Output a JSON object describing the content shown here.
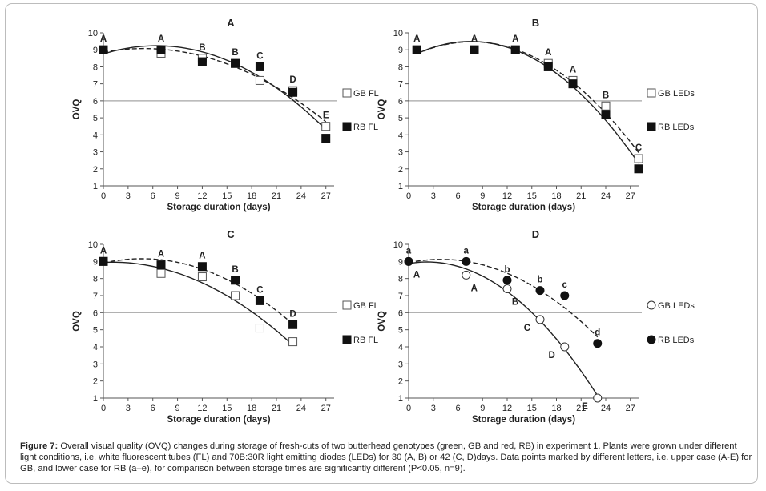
{
  "caption": {
    "label": "Figure 7:",
    "text": " Overall visual quality (OVQ) changes during storage of fresh-cuts of two butterhead genotypes (green, GB and red, RB) in experiment 1. Plants were grown under different light conditions, i.e. white fluorescent tubes (FL) and 70B:30R light emitting diodes (LEDs) for 30 (A, B) or 42 (C, D)days. Data points marked by different letters, i.e. upper case (A-E) for GB, and lower case for RB (a–e), for comparison between storage times are significantly different (P<0.05, n=9)."
  },
  "chart_data": [
    {
      "type": "scatter",
      "panel": "A",
      "title": "A",
      "xlabel": "Storage duration (days)",
      "ylabel": "OVQ",
      "xlim": [
        0,
        27
      ],
      "ylim": [
        1,
        10
      ],
      "xticks": [
        "0",
        "3",
        "6",
        "9",
        "12",
        "15",
        "18",
        "21",
        "24",
        "27"
      ],
      "yticks": [
        "1",
        "2",
        "3",
        "4",
        "5",
        "6",
        "7",
        "8",
        "9",
        "10"
      ],
      "reference_line_y": 6,
      "legend_placement": "right",
      "series": [
        {
          "name": "GB FL",
          "marker": "open-square",
          "trend": "dashed",
          "x": [
            0,
            7,
            12,
            16,
            19,
            23,
            27
          ],
          "y": [
            9.0,
            8.8,
            8.5,
            8.2,
            7.2,
            6.6,
            4.5
          ]
        },
        {
          "name": "RB FL",
          "marker": "filled-square",
          "trend": "solid",
          "x": [
            0,
            7,
            12,
            16,
            19,
            23,
            27
          ],
          "y": [
            9.0,
            9.0,
            8.3,
            8.2,
            8.0,
            6.5,
            3.8
          ]
        }
      ],
      "annotations": [
        {
          "text": "A",
          "x": 0,
          "y": 9.0,
          "pos": "above"
        },
        {
          "text": "A",
          "x": 7,
          "y": 9.0,
          "pos": "above"
        },
        {
          "text": "B",
          "x": 12,
          "y": 8.5,
          "pos": "above"
        },
        {
          "text": "B",
          "x": 16,
          "y": 8.2,
          "pos": "above"
        },
        {
          "text": "C",
          "x": 19,
          "y": 8.0,
          "pos": "above"
        },
        {
          "text": "D",
          "x": 23,
          "y": 6.6,
          "pos": "above"
        },
        {
          "text": "E",
          "x": 27,
          "y": 4.5,
          "pos": "above"
        }
      ]
    },
    {
      "type": "scatter",
      "panel": "B",
      "title": "B",
      "xlabel": "Storage duration (days)",
      "ylabel": "OVQ",
      "xlim": [
        0,
        27
      ],
      "ylim": [
        1,
        10
      ],
      "xticks": [
        "0",
        "3",
        "6",
        "9",
        "12",
        "15",
        "18",
        "21",
        "24",
        "27"
      ],
      "yticks": [
        "1",
        "2",
        "3",
        "4",
        "5",
        "6",
        "7",
        "8",
        "9",
        "10"
      ],
      "reference_line_y": 6,
      "legend_placement": "right",
      "series": [
        {
          "name": "GB LEDs",
          "marker": "open-square",
          "trend": "dashed",
          "x": [
            1,
            8,
            13,
            17,
            20,
            24,
            28
          ],
          "y": [
            9.0,
            9.0,
            9.0,
            8.2,
            7.2,
            5.7,
            2.6
          ]
        },
        {
          "name": "RB LEDs",
          "marker": "filled-square",
          "trend": "solid",
          "x": [
            1,
            8,
            13,
            17,
            20,
            24,
            28
          ],
          "y": [
            9.0,
            9.0,
            9.0,
            8.0,
            7.0,
            5.2,
            2.0
          ]
        }
      ],
      "annotations": [
        {
          "text": "A",
          "x": 1,
          "y": 9.0,
          "pos": "above"
        },
        {
          "text": "A",
          "x": 8,
          "y": 9.0,
          "pos": "above"
        },
        {
          "text": "A",
          "x": 13,
          "y": 9.0,
          "pos": "above"
        },
        {
          "text": "A",
          "x": 17,
          "y": 8.2,
          "pos": "above"
        },
        {
          "text": "A",
          "x": 20,
          "y": 7.2,
          "pos": "above"
        },
        {
          "text": "B",
          "x": 24,
          "y": 5.7,
          "pos": "above"
        },
        {
          "text": "C",
          "x": 28,
          "y": 2.6,
          "pos": "above"
        }
      ]
    },
    {
      "type": "scatter",
      "panel": "C",
      "title": "C",
      "xlabel": "Storage duration (days)",
      "ylabel": "OVQ",
      "xlim": [
        0,
        27
      ],
      "ylim": [
        1,
        10
      ],
      "xticks": [
        "0",
        "3",
        "6",
        "9",
        "12",
        "15",
        "18",
        "21",
        "24",
        "27"
      ],
      "yticks": [
        "1",
        "2",
        "3",
        "4",
        "5",
        "6",
        "7",
        "8",
        "9",
        "10"
      ],
      "reference_line_y": 6,
      "legend_placement": "right",
      "series": [
        {
          "name": "GB FL",
          "marker": "open-square",
          "trend": "solid",
          "x": [
            0,
            7,
            12,
            16,
            19,
            23
          ],
          "y": [
            9.0,
            8.3,
            8.1,
            7.0,
            5.1,
            4.3
          ]
        },
        {
          "name": "RB FL",
          "marker": "filled-square",
          "trend": "dashed",
          "x": [
            0,
            7,
            12,
            16,
            19,
            23
          ],
          "y": [
            9.0,
            8.8,
            8.7,
            7.9,
            6.7,
            5.3
          ]
        }
      ],
      "annotations": [
        {
          "text": "A",
          "x": 0,
          "y": 9.0,
          "pos": "above"
        },
        {
          "text": "A",
          "x": 7,
          "y": 8.8,
          "pos": "above"
        },
        {
          "text": "A",
          "x": 12,
          "y": 8.7,
          "pos": "above"
        },
        {
          "text": "B",
          "x": 16,
          "y": 7.9,
          "pos": "above"
        },
        {
          "text": "C",
          "x": 19,
          "y": 6.7,
          "pos": "above"
        },
        {
          "text": "D",
          "x": 23,
          "y": 5.3,
          "pos": "above"
        }
      ]
    },
    {
      "type": "scatter",
      "panel": "D",
      "title": "D",
      "xlabel": "Storage duration (days)",
      "ylabel": "OVQ",
      "xlim": [
        0,
        27
      ],
      "ylim": [
        1,
        10
      ],
      "xticks": [
        "0",
        "3",
        "6",
        "9",
        "12",
        "15",
        "18",
        "21",
        "24",
        "27"
      ],
      "yticks": [
        "1",
        "2",
        "3",
        "4",
        "5",
        "6",
        "7",
        "8",
        "9",
        "10"
      ],
      "reference_line_y": 6,
      "legend_placement": "right",
      "series": [
        {
          "name": "GB LEDs",
          "marker": "open-circle",
          "trend": "solid",
          "x": [
            0,
            7,
            12,
            16,
            19,
            23
          ],
          "y": [
            9.0,
            8.2,
            7.4,
            5.6,
            4.0,
            1.0
          ]
        },
        {
          "name": "RB LEDs",
          "marker": "filled-circle",
          "trend": "dashed",
          "x": [
            0,
            7,
            12,
            16,
            19,
            23
          ],
          "y": [
            9.0,
            9.0,
            7.9,
            7.3,
            7.0,
            4.2
          ]
        }
      ],
      "annotations": [
        {
          "text": "a",
          "x": 0,
          "y": 9.0,
          "pos": "above"
        },
        {
          "text": "a",
          "x": 7,
          "y": 9.0,
          "pos": "above"
        },
        {
          "text": "b",
          "x": 12,
          "y": 7.9,
          "pos": "above"
        },
        {
          "text": "b",
          "x": 16,
          "y": 7.3,
          "pos": "above"
        },
        {
          "text": "c",
          "x": 19,
          "y": 7.0,
          "pos": "above"
        },
        {
          "text": "d",
          "x": 23,
          "y": 4.2,
          "pos": "above"
        },
        {
          "text": "A",
          "x": 0,
          "y": 9.0,
          "pos": "below"
        },
        {
          "text": "A",
          "x": 7,
          "y": 8.2,
          "pos": "below"
        },
        {
          "text": "B",
          "x": 12,
          "y": 7.4,
          "pos": "below"
        },
        {
          "text": "C",
          "x": 16,
          "y": 5.6,
          "pos": "left"
        },
        {
          "text": "D",
          "x": 19,
          "y": 4.0,
          "pos": "left"
        },
        {
          "text": "E",
          "x": 23,
          "y": 1.0,
          "pos": "left"
        }
      ]
    }
  ]
}
